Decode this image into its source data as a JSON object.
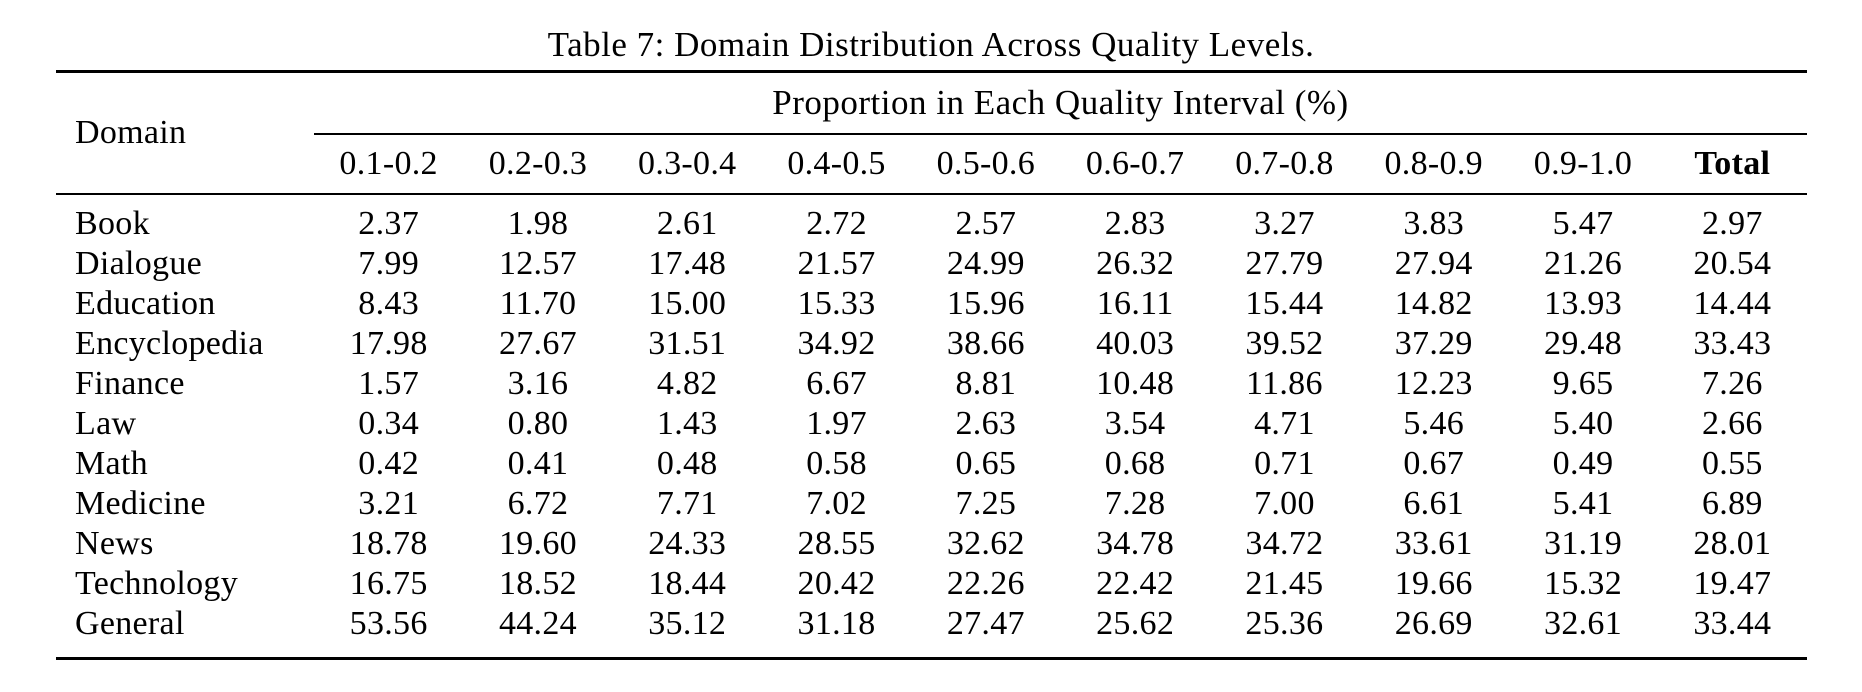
{
  "title": "Table 7: Domain Distribution Across Quality Levels.",
  "table": {
    "domain_header": "Domain",
    "span_header": "Proportion in Each Quality Interval (%)",
    "interval_headers": [
      "0.1-0.2",
      "0.2-0.3",
      "0.3-0.4",
      "0.4-0.5",
      "0.5-0.6",
      "0.6-0.7",
      "0.7-0.8",
      "0.8-0.9",
      "0.9-1.0"
    ],
    "total_header": "Total",
    "rows": [
      {
        "domain": "Book",
        "values": [
          "2.37",
          "1.98",
          "2.61",
          "2.72",
          "2.57",
          "2.83",
          "3.27",
          "3.83",
          "5.47",
          "2.97"
        ]
      },
      {
        "domain": "Dialogue",
        "values": [
          "7.99",
          "12.57",
          "17.48",
          "21.57",
          "24.99",
          "26.32",
          "27.79",
          "27.94",
          "21.26",
          "20.54"
        ]
      },
      {
        "domain": "Education",
        "values": [
          "8.43",
          "11.70",
          "15.00",
          "15.33",
          "15.96",
          "16.11",
          "15.44",
          "14.82",
          "13.93",
          "14.44"
        ]
      },
      {
        "domain": "Encyclopedia",
        "values": [
          "17.98",
          "27.67",
          "31.51",
          "34.92",
          "38.66",
          "40.03",
          "39.52",
          "37.29",
          "29.48",
          "33.43"
        ]
      },
      {
        "domain": "Finance",
        "values": [
          "1.57",
          "3.16",
          "4.82",
          "6.67",
          "8.81",
          "10.48",
          "11.86",
          "12.23",
          "9.65",
          "7.26"
        ]
      },
      {
        "domain": "Law",
        "values": [
          "0.34",
          "0.80",
          "1.43",
          "1.97",
          "2.63",
          "3.54",
          "4.71",
          "5.46",
          "5.40",
          "2.66"
        ]
      },
      {
        "domain": "Math",
        "values": [
          "0.42",
          "0.41",
          "0.48",
          "0.58",
          "0.65",
          "0.68",
          "0.71",
          "0.67",
          "0.49",
          "0.55"
        ]
      },
      {
        "domain": "Medicine",
        "values": [
          "3.21",
          "6.72",
          "7.71",
          "7.02",
          "7.25",
          "7.28",
          "7.00",
          "6.61",
          "5.41",
          "6.89"
        ]
      },
      {
        "domain": "News",
        "values": [
          "18.78",
          "19.60",
          "24.33",
          "28.55",
          "32.62",
          "34.78",
          "34.72",
          "33.61",
          "31.19",
          "28.01"
        ]
      },
      {
        "domain": "Technology",
        "values": [
          "16.75",
          "18.52",
          "18.44",
          "20.42",
          "22.26",
          "22.42",
          "21.45",
          "19.66",
          "15.32",
          "19.47"
        ]
      },
      {
        "domain": "General",
        "values": [
          "53.56",
          "44.24",
          "35.12",
          "31.18",
          "27.47",
          "25.62",
          "25.36",
          "26.69",
          "32.61",
          "33.44"
        ]
      }
    ]
  }
}
